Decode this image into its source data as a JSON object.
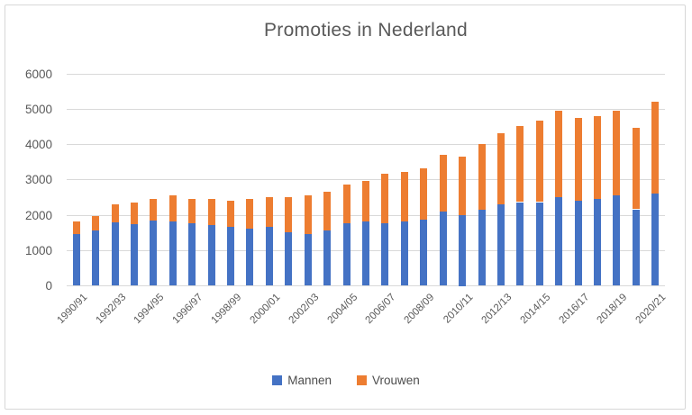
{
  "title": "Promoties in Nederland",
  "legend": {
    "items": [
      {
        "label": "Mannen",
        "color": "#4472C4"
      },
      {
        "label": "Vrouwen",
        "color": "#ED7D31"
      }
    ]
  },
  "colors": {
    "mannen": "#4472C4",
    "vrouwen": "#ED7D31",
    "gridline": "#d9d9d9",
    "axis_text": "#595959",
    "frame_border": "#d7d7d7"
  },
  "chart_data": {
    "type": "bar",
    "stacked": true,
    "title": "Promoties in Nederland",
    "xlabel": "",
    "ylabel": "",
    "ylim": [
      0,
      6000
    ],
    "y_ticks": [
      0,
      1000,
      2000,
      3000,
      4000,
      5000,
      6000
    ],
    "grid": true,
    "legend_position": "bottom",
    "x_tick_label_every": 2,
    "x_tick_rotation_deg": 45,
    "categories": [
      "1990/91",
      "1991/92",
      "1992/93",
      "1993/94",
      "1994/95",
      "1995/96",
      "1996/97",
      "1997/98",
      "1998/99",
      "1999/00",
      "2000/01",
      "2001/02",
      "2002/03",
      "2003/04",
      "2004/05",
      "2005/06",
      "2006/07",
      "2007/08",
      "2008/09",
      "2009/10",
      "2010/11",
      "2011/12",
      "2012/13",
      "2013/14",
      "2014/15",
      "2015/16",
      "2016/17",
      "2017/18",
      "2018/19",
      "2019/20",
      "2020/21"
    ],
    "series": [
      {
        "name": "Mannen",
        "color": "#4472C4",
        "values": [
          1450,
          1550,
          1800,
          1750,
          1850,
          1800,
          1750,
          1700,
          1650,
          1600,
          1650,
          1500,
          1450,
          1550,
          1750,
          1800,
          1750,
          1800,
          1850,
          2100,
          2000,
          2150,
          2300,
          2350,
          2350,
          2500,
          2400,
          2450,
          2550,
          2150,
          2600
        ]
      },
      {
        "name": "Vrouwen",
        "color": "#ED7D31",
        "values": [
          350,
          400,
          500,
          600,
          600,
          750,
          700,
          750,
          750,
          850,
          850,
          1000,
          1100,
          1100,
          1100,
          1150,
          1400,
          1400,
          1450,
          1600,
          1650,
          1850,
          2000,
          2150,
          2300,
          2450,
          2350,
          2350,
          2400,
          2300,
          2600
        ]
      }
    ]
  }
}
